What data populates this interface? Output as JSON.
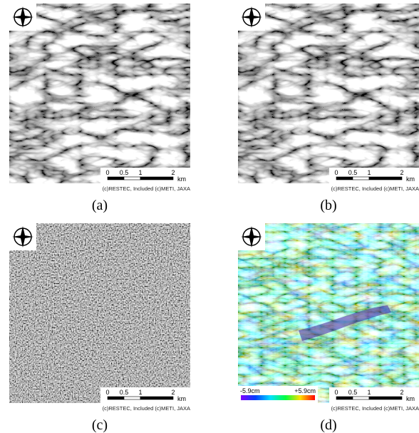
{
  "panels": [
    {
      "label": "(a)",
      "scale_bar": {
        "ticks": [
          "0",
          "0.5",
          "1",
          "2"
        ],
        "unit": "km"
      },
      "credit": "(c)RESTEC, Included (c)METI, JAXA"
    },
    {
      "label": "(b)",
      "scale_bar": {
        "ticks": [
          "0",
          "0.5",
          "1",
          "2"
        ],
        "unit": "km"
      },
      "credit": "(c)RESTEC, Included (c)METI, JAXA"
    },
    {
      "label": "(c)",
      "scale_bar": {
        "ticks": [
          "0",
          "0.5",
          "1",
          "2"
        ],
        "unit": "km"
      },
      "credit": "(c)RESTEC, Included (c)METI, JAXA"
    },
    {
      "label": "(d)",
      "scale_bar": {
        "ticks": [
          "0",
          "0.5",
          "1",
          "2"
        ],
        "unit": "km"
      },
      "credit": "(c)RESTEC, Included (c)METI, JAXA",
      "colorbar": {
        "min_label": "-5.9cm",
        "max_label": "+5.9cm"
      }
    }
  ]
}
